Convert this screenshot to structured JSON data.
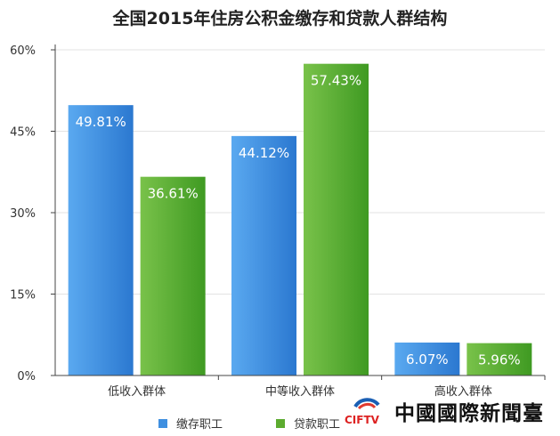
{
  "chart_data": {
    "type": "bar",
    "title": "全国2015年住房公积金缴存和贷款人群结构",
    "categories": [
      "低收入群体",
      "中等收入群体",
      "高收入群体"
    ],
    "series": [
      {
        "name": "缴存职工",
        "values": [
          49.81,
          44.12,
          6.07
        ],
        "labels": [
          "49.81%",
          "44.12%",
          "6.07%"
        ],
        "color": "#3f8fe0"
      },
      {
        "name": "贷款职工",
        "values": [
          36.61,
          57.43,
          5.96
        ],
        "labels": [
          "36.61%",
          "57.43%",
          "5.96%"
        ],
        "color": "#5cab2f"
      }
    ],
    "ylim": [
      0,
      60
    ],
    "yticks": [
      0,
      15,
      30,
      45,
      60
    ],
    "ytick_labels": [
      "0%",
      "15%",
      "30%",
      "45%",
      "60%"
    ],
    "grid": true,
    "legend_position": "bottom"
  },
  "watermark": {
    "logo_text": "CIFTV",
    "name": "中國國際新聞臺"
  }
}
